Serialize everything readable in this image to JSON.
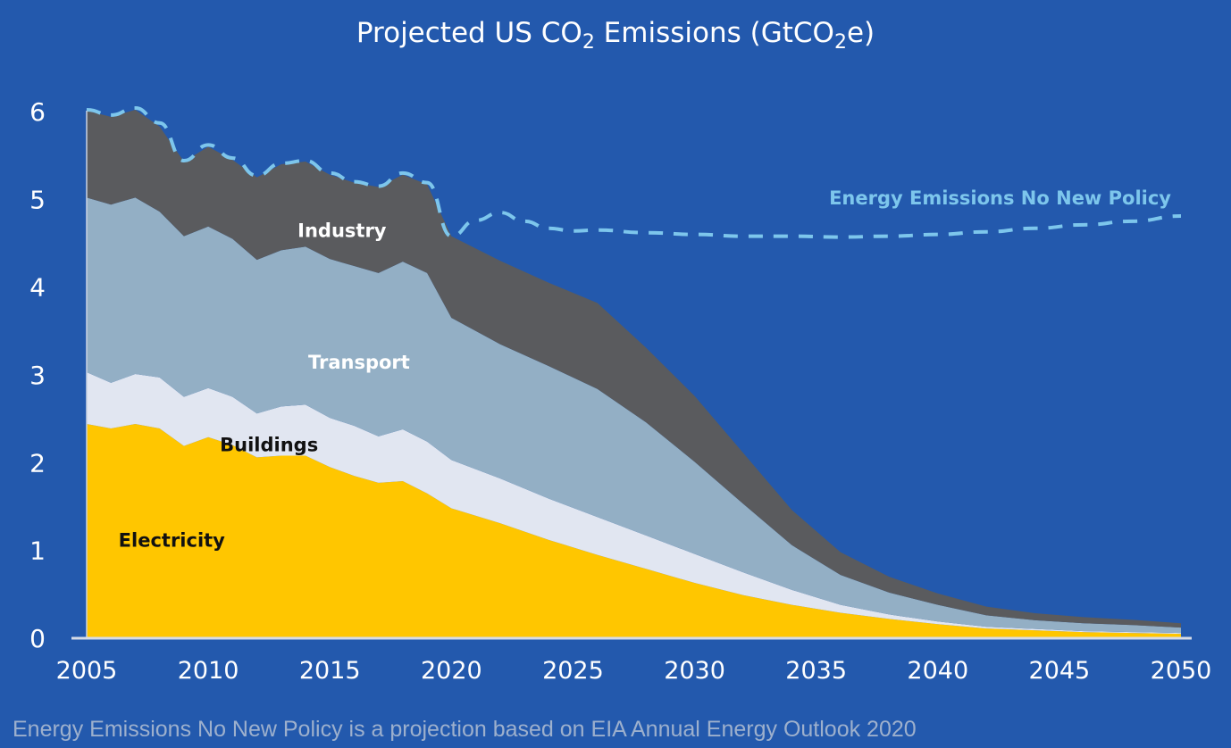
{
  "chart_data": {
    "type": "area",
    "stacked": true,
    "title_parts": [
      "Projected US CO",
      "2",
      " Emissions (GtCO",
      "2",
      "e)"
    ],
    "title": "Projected US CO2 Emissions (GtCO2e)",
    "xlabel": "",
    "ylabel": "",
    "xlim": [
      2005,
      2050
    ],
    "ylim": [
      0,
      6
    ],
    "x_ticks": [
      "2005",
      "2010",
      "2015",
      "2020",
      "2025",
      "2030",
      "2035",
      "2040",
      "2045",
      "2050"
    ],
    "y_ticks": [
      "0",
      "1",
      "2",
      "3",
      "4",
      "5",
      "6"
    ],
    "grid": false,
    "x": [
      2005,
      2006,
      2007,
      2008,
      2009,
      2010,
      2011,
      2012,
      2013,
      2014,
      2015,
      2016,
      2017,
      2018,
      2019,
      2020,
      2022,
      2024,
      2026,
      2028,
      2030,
      2032,
      2034,
      2036,
      2038,
      2040,
      2042,
      2044,
      2046,
      2048,
      2050
    ],
    "series": [
      {
        "name": "Electricity",
        "color": "#ffc600",
        "label_color": "#111111",
        "values": [
          2.43,
          2.38,
          2.43,
          2.38,
          2.18,
          2.28,
          2.19,
          2.05,
          2.07,
          2.07,
          1.94,
          1.84,
          1.76,
          1.78,
          1.64,
          1.47,
          1.3,
          1.11,
          0.94,
          0.78,
          0.62,
          0.48,
          0.37,
          0.28,
          0.21,
          0.15,
          0.1,
          0.08,
          0.06,
          0.05,
          0.04
        ]
      },
      {
        "name": "Buildings",
        "color": "#e1e6f1",
        "label_color": "#111111",
        "values": [
          0.59,
          0.52,
          0.57,
          0.58,
          0.56,
          0.56,
          0.55,
          0.5,
          0.56,
          0.58,
          0.56,
          0.57,
          0.53,
          0.59,
          0.59,
          0.55,
          0.51,
          0.47,
          0.43,
          0.38,
          0.33,
          0.26,
          0.17,
          0.09,
          0.05,
          0.03,
          0.02,
          0.015,
          0.01,
          0.01,
          0.01
        ]
      },
      {
        "name": "Transport",
        "color": "#93afc5",
        "label_color": "#ffffff",
        "values": [
          1.99,
          2.03,
          2.01,
          1.89,
          1.83,
          1.84,
          1.8,
          1.75,
          1.78,
          1.8,
          1.81,
          1.82,
          1.86,
          1.91,
          1.92,
          1.62,
          1.53,
          1.51,
          1.46,
          1.29,
          1.05,
          0.78,
          0.51,
          0.34,
          0.25,
          0.19,
          0.13,
          0.1,
          0.09,
          0.08,
          0.06
        ]
      },
      {
        "name": "Industry",
        "color": "#5a5b5e",
        "label_color": "#ffffff",
        "values": [
          0.99,
          1.0,
          1.0,
          0.97,
          0.85,
          0.91,
          0.9,
          0.94,
          0.98,
          0.97,
          0.96,
          0.95,
          0.98,
          0.99,
          1.01,
          0.93,
          0.95,
          0.95,
          0.98,
          0.85,
          0.75,
          0.58,
          0.4,
          0.26,
          0.18,
          0.13,
          0.1,
          0.08,
          0.07,
          0.06,
          0.05
        ]
      }
    ],
    "reference_line": {
      "name": "Energy Emissions No New Policy",
      "color": "#7dc6ec",
      "style": "dashed",
      "x": [
        2005,
        2006,
        2007,
        2008,
        2009,
        2010,
        2011,
        2012,
        2013,
        2014,
        2015,
        2016,
        2017,
        2018,
        2019,
        2020,
        2021,
        2022,
        2023,
        2024,
        2025,
        2026,
        2028,
        2030,
        2032,
        2034,
        2036,
        2038,
        2040,
        2042,
        2044,
        2046,
        2048,
        2050
      ],
      "values": [
        6.01,
        5.95,
        6.03,
        5.86,
        5.43,
        5.61,
        5.46,
        5.26,
        5.4,
        5.43,
        5.29,
        5.19,
        5.14,
        5.29,
        5.18,
        4.57,
        4.75,
        4.84,
        4.74,
        4.66,
        4.63,
        4.64,
        4.61,
        4.59,
        4.57,
        4.57,
        4.56,
        4.57,
        4.59,
        4.62,
        4.66,
        4.7,
        4.74,
        4.8
      ]
    },
    "annotations": [
      {
        "text": "Industry",
        "series": "Industry"
      },
      {
        "text": "Transport",
        "series": "Transport"
      },
      {
        "text": "Buildings",
        "series": "Buildings"
      },
      {
        "text": "Electricity",
        "series": "Electricity"
      },
      {
        "text": "Energy Emissions No New Policy",
        "series": "reference"
      }
    ],
    "legend": "none (inline labels)"
  },
  "footnote": "Energy Emissions No New Policy is a projection based on EIA Annual Energy Outlook 2020",
  "colors": {
    "background": "#2359ad",
    "axis": "#d6dbe6",
    "text": "#ffffff",
    "footnote": "#9db0cd"
  }
}
